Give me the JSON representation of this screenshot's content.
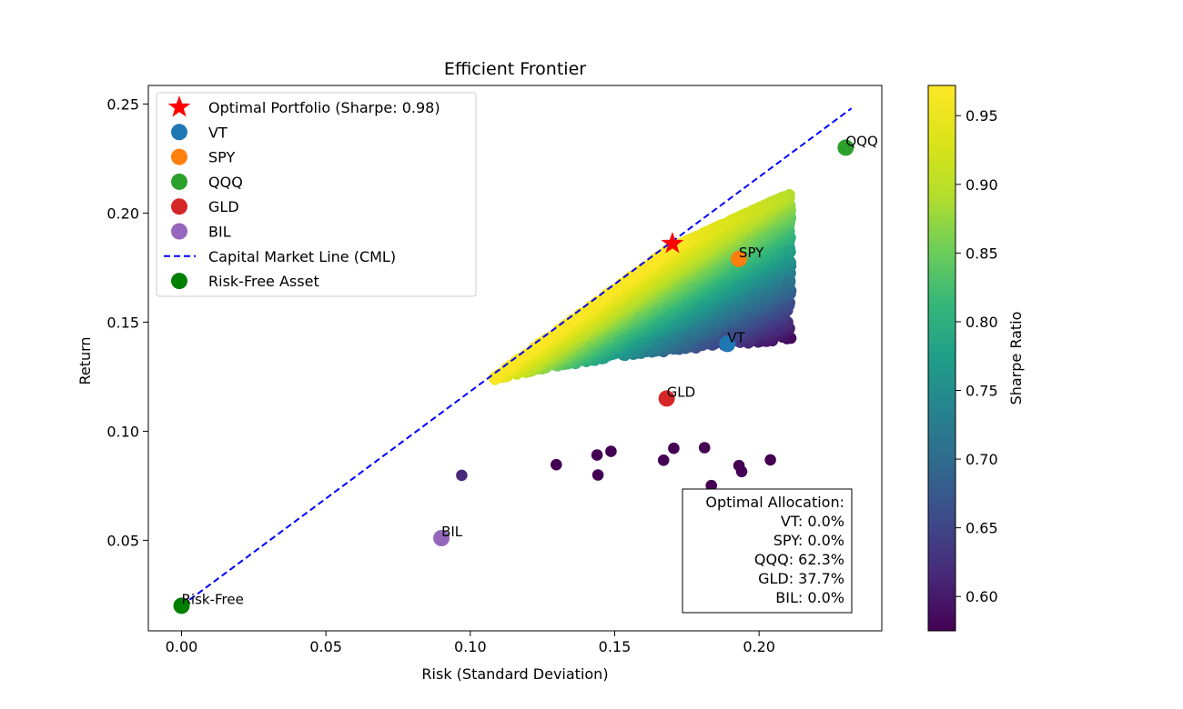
{
  "chart_data": {
    "type": "scatter",
    "title": "Efficient Frontier",
    "xlabel": "Risk (Standard Deviation)",
    "ylabel": "Return",
    "xlim": [
      -0.0115,
      0.2425
    ],
    "ylim": [
      0.0085,
      0.2585
    ],
    "xticks": [
      0.0,
      0.05,
      0.1,
      0.15,
      0.2
    ],
    "xtick_labels": [
      "0.00",
      "0.05",
      "0.10",
      "0.15",
      "0.20"
    ],
    "yticks": [
      0.05,
      0.1,
      0.15,
      0.2,
      0.25
    ],
    "ytick_labels": [
      "0.05",
      "0.10",
      "0.15",
      "0.20",
      "0.25"
    ],
    "grid": false,
    "colormap": "viridis",
    "simulated_portfolios": {
      "name": "Random portfolios",
      "approx_count": 5000,
      "risk_range": [
        0.097,
        0.211
      ],
      "return_range": [
        0.074,
        0.213
      ],
      "sharpe_range": [
        0.575,
        0.97
      ]
    },
    "optimal_portfolio": {
      "label": "Optimal Portfolio (Sharpe: 0.98)",
      "risk": 0.17,
      "return": 0.186,
      "color": "#ff0000"
    },
    "assets": [
      {
        "name": "VT",
        "risk": 0.189,
        "return": 0.14,
        "color": "#1f77b4"
      },
      {
        "name": "SPY",
        "risk": 0.193,
        "return": 0.179,
        "color": "#ff7f0e"
      },
      {
        "name": "QQQ",
        "risk": 0.23,
        "return": 0.23,
        "color": "#2ca02c"
      },
      {
        "name": "GLD",
        "risk": 0.168,
        "return": 0.115,
        "color": "#d62728"
      },
      {
        "name": "BIL",
        "risk": 0.09,
        "return": 0.051,
        "color": "#9467bd"
      }
    ],
    "risk_free": {
      "label": "Risk-Free Asset",
      "annotation": "Risk-Free",
      "risk": 0.0,
      "return": 0.02,
      "color": "#008000"
    },
    "cml": {
      "label": "Capital Market Line (CML)",
      "x": [
        0.0,
        0.232
      ],
      "y": [
        0.02,
        0.248
      ],
      "color": "#0000ff"
    },
    "legend": {
      "placement": "upper-left",
      "entries": [
        {
          "label": "Optimal Portfolio (Sharpe: 0.98)",
          "marker": "star",
          "color": "#ff0000"
        },
        {
          "label": "VT",
          "marker": "circle",
          "color": "#1f77b4"
        },
        {
          "label": "SPY",
          "marker": "circle",
          "color": "#ff7f0e"
        },
        {
          "label": "QQQ",
          "marker": "circle",
          "color": "#2ca02c"
        },
        {
          "label": "GLD",
          "marker": "circle",
          "color": "#d62728"
        },
        {
          "label": "BIL",
          "marker": "circle",
          "color": "#9467bd"
        },
        {
          "label": "Capital Market Line (CML)",
          "marker": "dashed-line",
          "color": "#0000ff"
        },
        {
          "label": "Risk-Free Asset",
          "marker": "circle",
          "color": "#008000"
        }
      ]
    },
    "allocation_box": {
      "placement": "lower-right",
      "title": "Optimal Allocation:",
      "lines": [
        "VT: 0.0%",
        "SPY: 0.0%",
        "QQQ: 62.3%",
        "GLD: 37.7%",
        "BIL: 0.0%"
      ]
    },
    "colorbar": {
      "label": "Sharpe Ratio",
      "range": [
        0.575,
        0.972
      ],
      "ticks": [
        0.6,
        0.65,
        0.7,
        0.75,
        0.8,
        0.85,
        0.9,
        0.95
      ],
      "tick_labels": [
        "0.60",
        "0.65",
        "0.70",
        "0.75",
        "0.80",
        "0.85",
        "0.90",
        "0.95"
      ]
    }
  }
}
